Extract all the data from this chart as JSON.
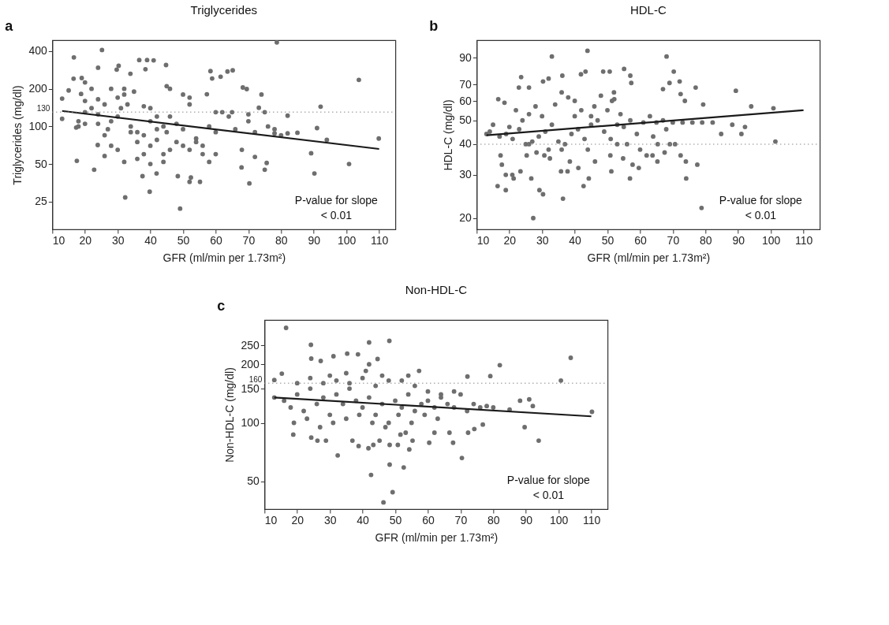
{
  "chart_data": [
    {
      "type": "scatter",
      "title": "Triglycerides",
      "xlabel": "GFR (ml/min per 1.73m²)",
      "ylabel": "Triglycerides (mg/dl)",
      "log": "y",
      "xlim": [
        10,
        115
      ],
      "xticks": [
        10,
        20,
        30,
        40,
        50,
        60,
        70,
        80,
        90,
        100,
        110
      ],
      "ylim": [
        15,
        490
      ],
      "yticks": [
        25,
        50,
        100,
        200,
        400
      ],
      "ref_lines": [
        {
          "axis": "y",
          "value": 130,
          "label": "130",
          "color": "#8a8a8a",
          "line_style": "dotted"
        }
      ],
      "annotations": [
        "a",
        "P-value for slope",
        "< 0.01"
      ],
      "series": [
        {
          "color": "#6e6e6e",
          "marker": "circle",
          "x": [
            13,
            13,
            16.6,
            16.5,
            15,
            17.3,
            17.5,
            19,
            20,
            18.8,
            22.8,
            24,
            25.2,
            26,
            23.9,
            30.3,
            29.7,
            32.3,
            33.9,
            36.6,
            39,
            41,
            44.8,
            38.5,
            37.6,
            39.8,
            41.9,
            49.1,
            48.4,
            52.4,
            55.2,
            52,
            58.4,
            58.9,
            61.5,
            63.6,
            65.2,
            57.3,
            67.9,
            70.3,
            68.3,
            69.5,
            74,
            73.2,
            72,
            75,
            75.6,
            90.2,
            89.2,
            91,
            92.1,
            85,
            82,
            100.8,
            103.8,
            109.9,
            94,
            78.7,
            20,
            22,
            24,
            26,
            28,
            30,
            32,
            34,
            36,
            38,
            40,
            42,
            44,
            45,
            46,
            48,
            50,
            52,
            54,
            56,
            58,
            60,
            62,
            64,
            66,
            68,
            70,
            72,
            76,
            78,
            80,
            26,
            28,
            30,
            34,
            36,
            38,
            40,
            42,
            44,
            48,
            50,
            52,
            54,
            56,
            30,
            32,
            35,
            38,
            40,
            24,
            22,
            20,
            18,
            28,
            31,
            33,
            46,
            50,
            52,
            45,
            60,
            65,
            70,
            75,
            78,
            82,
            18,
            20,
            24,
            27,
            42,
            46,
            36,
            58,
            60,
            44,
            32,
            40
          ],
          "values": [
            167,
            115,
            357,
            241,
            194,
            98,
            53,
            244,
            225,
            182,
            45,
            295,
            409,
            58,
            71,
            306,
            285,
            27,
            264,
            340,
            340,
            338,
            310,
            287,
            40,
            30,
            42,
            22,
            40,
            39,
            36,
            36,
            277,
            242,
            250,
            275,
            281,
            181,
            47,
            35,
            205,
            199,
            180,
            141,
            57,
            45,
            51,
            42,
            61,
            97,
            144,
            89,
            122,
            50,
            236,
            80,
            78,
            470,
            130,
            140,
            125,
            150,
            110,
            120,
            180,
            100,
            90,
            85,
            110,
            95,
            100,
            90,
            120,
            105,
            95,
            150,
            80,
            70,
            100,
            90,
            130,
            120,
            95,
            65,
            110,
            90,
            100,
            88,
            85,
            85,
            70,
            65,
            90,
            75,
            60,
            70,
            120,
            60,
            75,
            70,
            65,
            75,
            60,
            170,
            200,
            190,
            145,
            140,
            165,
            200,
            160,
            110,
            200,
            140,
            150,
            200,
            180,
            170,
            210,
            130,
            130,
            125,
            130,
            95,
            88,
            100,
            105,
            105,
            95,
            78,
            65,
            55,
            52,
            60,
            52,
            52,
            50
          ]
        },
        {
          "type": "line",
          "color": "#1a1a1a",
          "x": [
            13,
            110
          ],
          "values": [
            133,
            66
          ]
        }
      ]
    },
    {
      "type": "scatter",
      "title": "HDL-C",
      "xlabel": "GFR (ml/min per 1.73m²)",
      "ylabel": "HDL-C (mg/dl)",
      "log": "y",
      "xlim": [
        10,
        115
      ],
      "xticks": [
        10,
        20,
        30,
        40,
        50,
        60,
        70,
        80,
        90,
        100,
        110
      ],
      "ylim": [
        18,
        106
      ],
      "yticks": [
        20,
        30,
        40,
        50,
        60,
        70,
        90
      ],
      "ref_lines": [
        {
          "axis": "y",
          "value": 40,
          "color": "#8a8a8a",
          "line_style": "dotted"
        }
      ],
      "annotations": [
        "b",
        "P-value for slope",
        "< 0.01"
      ],
      "series": [
        {
          "color": "#6e6e6e",
          "marker": "circle",
          "x": [
            43.9,
            33,
            68.1,
            55.1,
            70.3,
            57,
            43.3,
            41.9,
            36.2,
            23.6,
            48.7,
            50.7,
            32,
            30.3,
            72.1,
            69,
            57.3,
            22.9,
            26,
            67,
            77,
            89.3,
            72.4,
            73.7,
            16.6,
            18.5,
            94,
            100.8,
            79.3,
            52.1,
            51.4,
            16.4,
            18.9,
            29.2,
            30.3,
            36.4,
            27.3,
            78.8,
            42.7,
            44.3,
            26.7,
            20.9,
            56.9,
            74.1,
            74,
            77.5,
            84.8,
            91,
            92.1,
            88.2,
            101.4,
            82.2,
            72.4,
            65.3,
            62,
            63.8,
            59.6,
            57.7,
            50.9,
            51.2,
            54.8,
            46.2,
            41.1,
            38.5,
            35.8,
            37.8,
            23.4,
            17.3,
            17.7,
            18.9,
            21.3,
            25.3,
            28.3,
            30.7,
            32.4,
            67.5,
            65.4,
            69.1,
            70.7,
            19,
            21,
            23,
            25,
            27,
            29,
            31,
            33,
            35,
            37,
            39,
            41,
            43,
            45,
            47,
            49,
            51,
            53,
            55,
            57,
            59,
            61,
            63,
            65,
            67,
            70,
            73,
            76,
            79,
            22,
            26,
            30,
            34,
            38,
            42,
            46,
            50,
            54,
            48,
            52,
            36,
            40,
            28,
            24,
            20,
            32,
            44,
            56,
            60,
            64,
            68,
            45,
            40,
            53,
            36,
            26,
            17,
            14,
            13,
            15
          ],
          "values": [
            96,
            91,
            91,
            81,
            79,
            76,
            79,
            77,
            76,
            75,
            79,
            79,
            74,
            72,
            72,
            71,
            71,
            68,
            68,
            67,
            68,
            66,
            64,
            60,
            61,
            59,
            57,
            56,
            58,
            61,
            60,
            27,
            26,
            26,
            25,
            24,
            20,
            22,
            27,
            29,
            29,
            30,
            29,
            29,
            34,
            33,
            44,
            44,
            47,
            48,
            41,
            49,
            36,
            34,
            36,
            36,
            32,
            33,
            36,
            31,
            35,
            34,
            32,
            34,
            31,
            31,
            31,
            36,
            33,
            30,
            29,
            36,
            37,
            36,
            35,
            37,
            40,
            40,
            40,
            44,
            42,
            46,
            40,
            41,
            43,
            45,
            48,
            41,
            40,
            44,
            46,
            42,
            48,
            50,
            45,
            42,
            48,
            47,
            50,
            44,
            49,
            52,
            49,
            50,
            49,
            49,
            49,
            49,
            55,
            53,
            52,
            58,
            62,
            55,
            57,
            55,
            53,
            63,
            65,
            65,
            60,
            57,
            50,
            47,
            38,
            38,
            40,
            38,
            43,
            46,
            52,
            52,
            40,
            38,
            40,
            43,
            45,
            44,
            48
          ]
        },
        {
          "type": "line",
          "color": "#1a1a1a",
          "x": [
            13,
            110
          ],
          "values": [
            43.5,
            55
          ]
        }
      ]
    },
    {
      "type": "scatter",
      "title": "Non-HDL-C",
      "xlabel": "GFR (ml/min per 1.73m²)",
      "ylabel": "Non-HDL-C (mg/dl)",
      "log": "y",
      "xlim": [
        10,
        115
      ],
      "xticks": [
        10,
        20,
        30,
        40,
        50,
        60,
        70,
        80,
        90,
        100,
        110
      ],
      "ylim": [
        36,
        338
      ],
      "yticks": [
        50,
        100,
        150,
        200,
        250
      ],
      "ref_lines": [
        {
          "axis": "y",
          "value": 160,
          "label": "160",
          "color": "#8a8a8a",
          "line_style": "dotted"
        }
      ],
      "annotations": [
        "c",
        "P-value for slope",
        "< 0.01"
      ],
      "series": [
        {
          "color": "#6e6e6e",
          "marker": "circle",
          "x": [
            16.6,
            48.2,
            42,
            24.2,
            31.1,
            35.3,
            38.6,
            103.7,
            82,
            24.3,
            27.2,
            42,
            44.6,
            57.3,
            15.3,
            72.1,
            79.1,
            100.7,
            13,
            32.4,
            48.3,
            52.6,
            42.6,
            49.2,
            46.4,
            70.4,
            93.9,
            89.6,
            88.2,
            91,
            92.1,
            110.2,
            85,
            18.8,
            24.3,
            26.2,
            28.8,
            36.9,
            38.8,
            41.8,
            43.3,
            45.2,
            48.3,
            50.8,
            54.3,
            55.3,
            60.4,
            62,
            66.6,
            67.7,
            72.3,
            74.2,
            76.8,
            51.6,
            53.2,
            13,
            16,
            18,
            20,
            22,
            24,
            26,
            28,
            30,
            32,
            34,
            36,
            38,
            40,
            42,
            44,
            46,
            48,
            50,
            52,
            54,
            56,
            58,
            60,
            62,
            64,
            66,
            68,
            70,
            72,
            74,
            76,
            78,
            80,
            19,
            23,
            27,
            31,
            35,
            39,
            43,
            47,
            51,
            55,
            59,
            63,
            20,
            24,
            28,
            32,
            36,
            40,
            44,
            48,
            52,
            56,
            60,
            64,
            68,
            30,
            35,
            41,
            46,
            54
          ],
          "values": [
            308,
            264,
            259,
            252,
            220,
            227,
            225,
            216,
            198,
            214,
            208,
            200,
            213,
            185,
            179,
            173,
            174,
            165,
            166,
            68,
            61,
            59,
            54,
            44,
            39,
            66,
            81,
            95,
            130,
            132,
            122,
            114,
            117,
            87,
            84,
            81,
            81,
            81,
            76,
            74,
            77,
            81,
            77,
            77,
            73,
            81,
            79,
            89,
            89,
            79,
            89,
            93,
            98,
            87,
            89,
            135,
            130,
            120,
            140,
            115,
            150,
            125,
            135,
            110,
            140,
            125,
            150,
            130,
            120,
            135,
            110,
            125,
            100,
            130,
            120,
            140,
            115,
            125,
            130,
            120,
            135,
            125,
            120,
            140,
            115,
            125,
            120,
            122,
            120,
            100,
            105,
            95,
            100,
            105,
            110,
            100,
            95,
            110,
            100,
            110,
            105,
            160,
            170,
            160,
            165,
            160,
            170,
            155,
            165,
            165,
            155,
            145,
            140,
            145,
            175,
            180,
            185,
            175,
            175
          ]
        },
        {
          "type": "line",
          "color": "#1a1a1a",
          "x": [
            13,
            110
          ],
          "values": [
            135,
            108
          ]
        }
      ]
    }
  ]
}
